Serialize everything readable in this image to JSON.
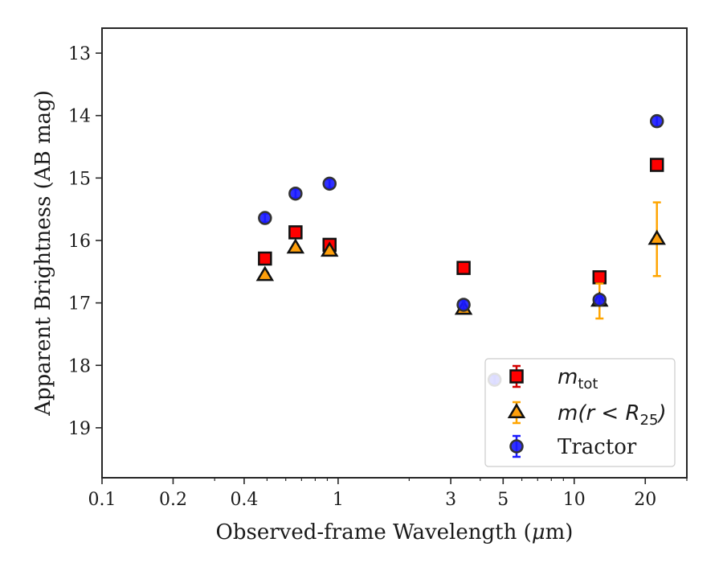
{
  "chart_data": {
    "type": "scatter",
    "xlabel_parts": [
      "Observed-frame Wavelength (",
      "μ",
      "m)"
    ],
    "ylabel": "Apparent Brightness (AB mag)",
    "x_scale": "log",
    "xlim": [
      0.1,
      30
    ],
    "ylim": [
      19.8,
      12.6
    ],
    "y_inverted": true,
    "x_ticks": [
      {
        "value": 0.1,
        "label": "0.1"
      },
      {
        "value": 0.2,
        "label": "0.2"
      },
      {
        "value": 0.4,
        "label": "0.4"
      },
      {
        "value": 1,
        "label": "1"
      },
      {
        "value": 3,
        "label": "3"
      },
      {
        "value": 5,
        "label": "5"
      },
      {
        "value": 10,
        "label": "10"
      },
      {
        "value": 20,
        "label": "20"
      }
    ],
    "y_ticks": [
      13,
      14,
      15,
      16,
      17,
      18,
      19
    ],
    "grid": false,
    "legend_position": "lower-right",
    "series": [
      {
        "key": "mtot",
        "legend_math": "m",
        "legend_sub": "tot",
        "marker": "square",
        "color": "#ff0000",
        "err_color": "#d40000",
        "points": [
          {
            "x": 0.49,
            "y": 16.29,
            "err": 0.04
          },
          {
            "x": 0.66,
            "y": 15.87,
            "err": 0.04
          },
          {
            "x": 0.92,
            "y": 16.07,
            "err": 0.04
          },
          {
            "x": 3.4,
            "y": 16.44,
            "err": 0.04
          },
          {
            "x": 12.8,
            "y": 16.59,
            "err": 0.05
          },
          {
            "x": 22.4,
            "y": 14.79,
            "err": 0.06
          }
        ]
      },
      {
        "key": "mr25",
        "legend_math": "m(r < R",
        "legend_sub": "25",
        "legend_tail": ")",
        "marker": "triangle",
        "color": "#ff9f0a",
        "err_color": "#ffa500",
        "points": [
          {
            "x": 0.49,
            "y": 16.56,
            "err": 0.04
          },
          {
            "x": 0.66,
            "y": 16.12,
            "err": 0.04
          },
          {
            "x": 0.92,
            "y": 16.17,
            "err": 0.04
          },
          {
            "x": 3.4,
            "y": 17.1,
            "err": 0.05
          },
          {
            "x": 12.8,
            "y": 16.97,
            "err": 0.28
          },
          {
            "x": 22.4,
            "y": 15.98,
            "err": 0.59
          }
        ]
      },
      {
        "key": "tractor",
        "legend_label": "Tractor",
        "marker": "circle",
        "color": "#1a1aff",
        "err_color": "#1a1aff",
        "points": [
          {
            "x": 0.49,
            "y": 15.64,
            "err": 0.07
          },
          {
            "x": 0.66,
            "y": 15.25,
            "err": 0.07
          },
          {
            "x": 0.92,
            "y": 15.09,
            "err": 0.07
          },
          {
            "x": 3.4,
            "y": 17.03,
            "err": 0.07
          },
          {
            "x": 4.6,
            "y": 18.23,
            "err": 0.07
          },
          {
            "x": 12.8,
            "y": 16.95,
            "err": 0.07
          },
          {
            "x": 22.4,
            "y": 14.09,
            "err": 0.08
          }
        ]
      }
    ]
  }
}
